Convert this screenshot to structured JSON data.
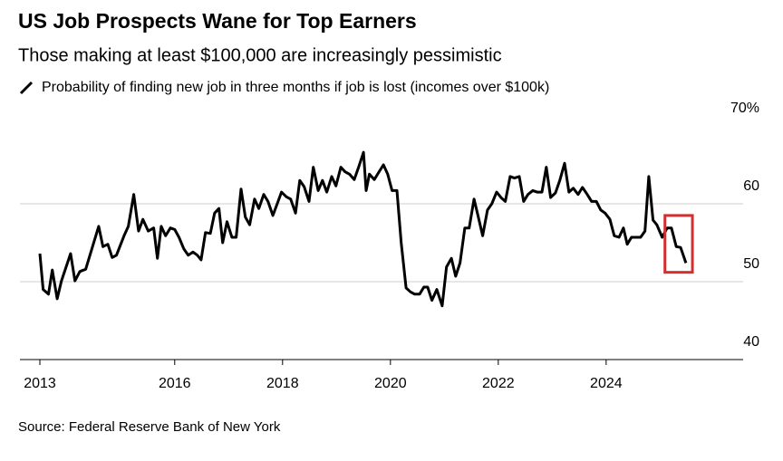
{
  "chart_data": {
    "type": "line",
    "title": "US Job Prospects Wane for Top Earners",
    "subtitle": "Those making at least $100,000 are increasingly pessimistic",
    "source": "Source: Federal Reserve Bank of New York",
    "xlim": [
      2013.13,
      2026.54
    ],
    "xticks": [
      {
        "value": 2013.5,
        "label": "2013"
      },
      2016,
      2018,
      2020,
      2022,
      2024
    ],
    "ylim": [
      40,
      70
    ],
    "yticks": [
      40,
      50,
      60,
      {
        "value": 70,
        "label": "70%"
      }
    ],
    "grid": true,
    "highlight": {
      "xlim": [
        2025.09,
        2025.6
      ],
      "ylim": [
        51.2,
        58.5
      ],
      "color": "#d32f2f"
    },
    "x": [
      2013.5,
      2013.56,
      2013.66,
      2013.73,
      2013.82,
      2013.9,
      2014.07,
      2014.15,
      2014.24,
      2014.35,
      2014.49,
      2014.59,
      2014.67,
      2014.76,
      2014.84,
      2014.92,
      2015.06,
      2015.14,
      2015.24,
      2015.33,
      2015.41,
      2015.51,
      2015.61,
      2015.68,
      2015.75,
      2015.83,
      2015.92,
      2016.0,
      2016.08,
      2016.17,
      2016.25,
      2016.34,
      2016.42,
      2016.49,
      2016.57,
      2016.66,
      2016.74,
      2016.82,
      2016.89,
      2016.97,
      2017.06,
      2017.14,
      2017.23,
      2017.31,
      2017.39,
      2017.48,
      2017.56,
      2017.65,
      2017.73,
      2017.82,
      2017.9,
      2017.98,
      2018.07,
      2018.15,
      2018.24,
      2018.32,
      2018.4,
      2018.49,
      2018.57,
      2018.66,
      2018.74,
      2018.82,
      2018.91,
      2018.99,
      2019.08,
      2019.16,
      2019.24,
      2019.33,
      2019.41,
      2019.5,
      2019.55,
      2019.61,
      2019.7,
      2019.78,
      2019.87,
      2019.95,
      2020.03,
      2020.12,
      2020.2,
      2020.29,
      2020.37,
      2020.45,
      2020.54,
      2020.62,
      2020.69,
      2020.77,
      2020.86,
      2020.96,
      2021.04,
      2021.13,
      2021.21,
      2021.29,
      2021.38,
      2021.46,
      2021.55,
      2021.63,
      2021.71,
      2021.8,
      2021.88,
      2021.97,
      2022.05,
      2022.13,
      2022.22,
      2022.3,
      2022.39,
      2022.47,
      2022.55,
      2022.64,
      2022.72,
      2022.81,
      2022.89,
      2022.97,
      2023.06,
      2023.14,
      2023.23,
      2023.31,
      2023.39,
      2023.48,
      2023.56,
      2023.65,
      2023.73,
      2023.82,
      2023.9,
      2023.98,
      2024.07,
      2024.15,
      2024.24,
      2024.32,
      2024.39,
      2024.47,
      2024.55,
      2024.64,
      2024.72,
      2024.79,
      2024.87,
      2024.94,
      2025.04,
      2025.13,
      2025.21,
      2025.3,
      2025.38,
      2025.48
    ],
    "series": [
      {
        "name": "Probability of finding new job in three months if job is lost (incomes over $100k)",
        "color": "#000000",
        "values": [
          53.6,
          49.0,
          48.4,
          51.5,
          47.8,
          50.1,
          53.6,
          50.1,
          51.3,
          51.6,
          54.8,
          57.1,
          54.5,
          54.8,
          53.1,
          53.4,
          55.9,
          57.1,
          61.2,
          56.5,
          58.0,
          56.5,
          56.9,
          53.0,
          57.1,
          55.9,
          56.9,
          56.7,
          55.7,
          54.2,
          53.4,
          53.8,
          53.4,
          52.8,
          56.3,
          56.2,
          58.8,
          59.4,
          55.0,
          57.7,
          55.7,
          55.7,
          61.9,
          58.3,
          57.3,
          60.6,
          59.4,
          61.2,
          60.3,
          58.5,
          60.0,
          61.5,
          60.9,
          60.6,
          58.8,
          63.0,
          62.2,
          60.3,
          64.7,
          61.7,
          63.0,
          61.5,
          63.5,
          62.3,
          64.7,
          64.1,
          63.8,
          63.1,
          64.7,
          66.6,
          61.7,
          63.8,
          63.1,
          64.0,
          65.0,
          63.8,
          61.7,
          61.7,
          55.0,
          49.2,
          48.7,
          48.4,
          48.4,
          49.3,
          49.3,
          47.6,
          49.0,
          46.9,
          51.9,
          53.0,
          50.7,
          52.4,
          56.9,
          56.9,
          60.6,
          58.3,
          55.9,
          59.2,
          60.0,
          61.5,
          60.8,
          60.3,
          63.5,
          63.3,
          63.5,
          60.3,
          61.2,
          61.7,
          61.5,
          61.5,
          64.7,
          60.8,
          61.4,
          63.0,
          65.2,
          61.5,
          62.0,
          61.2,
          62.1,
          61.2,
          60.3,
          60.3,
          59.2,
          58.8,
          58.0,
          55.9,
          55.7,
          56.9,
          54.8,
          55.7,
          55.7,
          55.7,
          56.5,
          63.5,
          57.9,
          57.3,
          55.7,
          56.9,
          56.9,
          54.5,
          54.4,
          52.4
        ]
      }
    ]
  }
}
